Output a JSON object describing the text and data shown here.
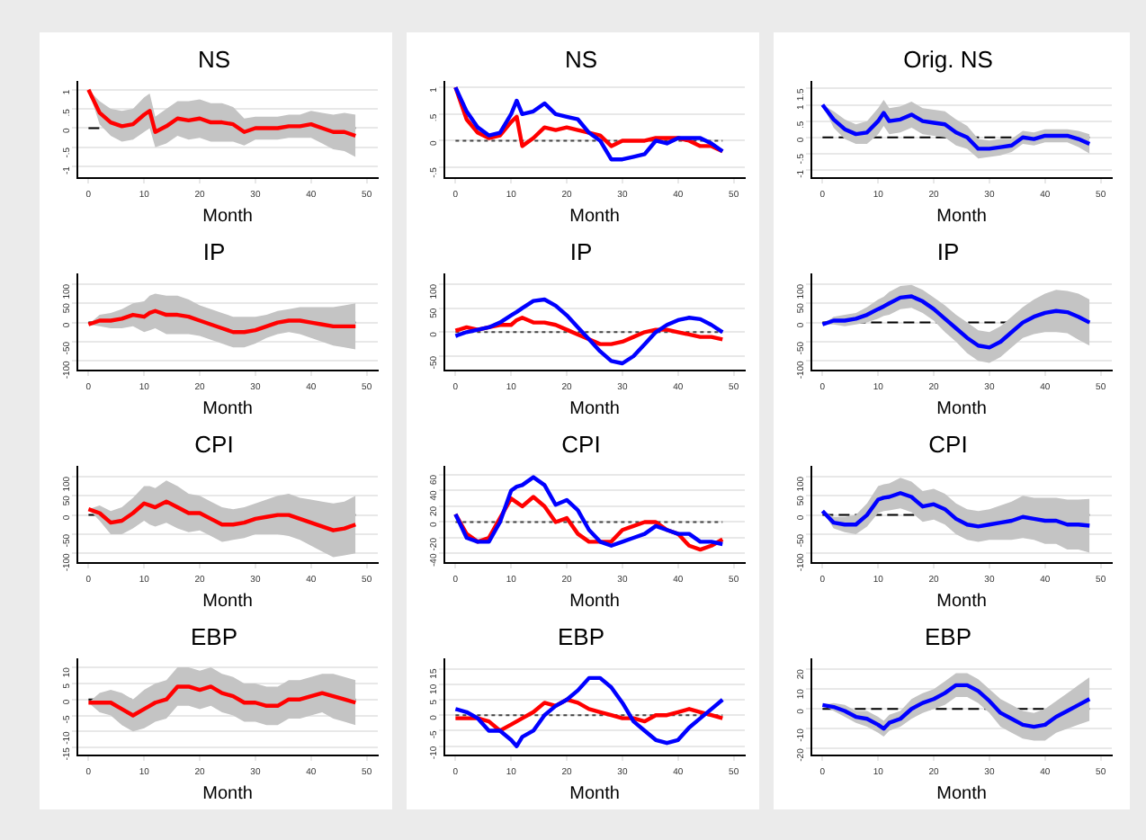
{
  "chart_data": [
    {
      "type": "line",
      "title": "NS",
      "xlabel": "Month",
      "x": [
        0,
        2,
        4,
        6,
        8,
        10,
        11,
        12,
        14,
        16,
        18,
        20,
        22,
        24,
        26,
        28,
        30,
        32,
        34,
        36,
        38,
        40,
        42,
        44,
        46,
        48
      ],
      "xlim": [
        -2,
        52
      ],
      "xticks": [
        0,
        10,
        20,
        30,
        40,
        50
      ],
      "ylim": [
        -1.3,
        1.2
      ],
      "yticks": [
        {
          "value": 1,
          "label": "1"
        },
        {
          "value": 0.5,
          "label": ".5"
        },
        {
          "value": 0,
          "label": "0"
        },
        {
          "value": -0.5,
          "label": "-.5"
        },
        {
          "value": -1,
          "label": "-1"
        }
      ],
      "grid": "y",
      "legend": false,
      "ref_lines": [
        {
          "axis": "y",
          "value": 0,
          "color": "#000000",
          "line_style": "dashed"
        }
      ],
      "series": [
        {
          "color": "#ff0000",
          "values": [
            1.0,
            0.4,
            0.15,
            0.05,
            0.1,
            0.35,
            0.45,
            -0.1,
            0.05,
            0.25,
            0.2,
            0.25,
            0.15,
            0.15,
            0.1,
            -0.1,
            0,
            0,
            0,
            0.05,
            0.05,
            0.1,
            0,
            -0.1,
            -0.1,
            -0.2
          ],
          "lower": [
            1.0,
            0.1,
            -0.2,
            -0.35,
            -0.3,
            -0.1,
            0,
            -0.5,
            -0.4,
            -0.2,
            -0.3,
            -0.25,
            -0.35,
            -0.35,
            -0.35,
            -0.45,
            -0.3,
            -0.3,
            -0.3,
            -0.25,
            -0.25,
            -0.25,
            -0.4,
            -0.55,
            -0.6,
            -0.75
          ],
          "upper": [
            1.0,
            0.7,
            0.5,
            0.45,
            0.5,
            0.8,
            0.9,
            0.3,
            0.5,
            0.7,
            0.7,
            0.75,
            0.65,
            0.65,
            0.55,
            0.25,
            0.3,
            0.3,
            0.3,
            0.35,
            0.35,
            0.45,
            0.4,
            0.35,
            0.4,
            0.35
          ]
        }
      ]
    },
    {
      "type": "line",
      "title": "NS",
      "xlabel": "Month",
      "x": [
        0,
        2,
        4,
        6,
        8,
        10,
        11,
        12,
        14,
        16,
        18,
        20,
        22,
        24,
        26,
        28,
        30,
        32,
        34,
        36,
        38,
        40,
        42,
        44,
        46,
        48
      ],
      "xlim": [
        -2,
        52
      ],
      "xticks": [
        0,
        10,
        20,
        30,
        40,
        50
      ],
      "ylim": [
        -0.7,
        1.1
      ],
      "yticks": [
        {
          "value": 1,
          "label": "1"
        },
        {
          "value": 0.5,
          "label": ".5"
        },
        {
          "value": 0,
          "label": "0"
        },
        {
          "value": -0.5,
          "label": "-.5"
        }
      ],
      "grid": "y",
      "legend": false,
      "ref_lines": [
        {
          "axis": "y",
          "value": 0,
          "color": "#444444",
          "line_style": "dotted"
        }
      ],
      "series": [
        {
          "color": "#ff0000",
          "values": [
            1.0,
            0.4,
            0.15,
            0.05,
            0.1,
            0.35,
            0.45,
            -0.1,
            0.05,
            0.25,
            0.2,
            0.25,
            0.2,
            0.15,
            0.1,
            -0.1,
            0,
            0,
            0,
            0.05,
            0.05,
            0.05,
            0,
            -0.1,
            -0.1,
            -0.2
          ]
        },
        {
          "color": "#0000ff",
          "values": [
            1.0,
            0.55,
            0.25,
            0.1,
            0.15,
            0.5,
            0.75,
            0.5,
            0.55,
            0.7,
            0.5,
            0.45,
            0.4,
            0.15,
            0,
            -0.35,
            -0.35,
            -0.3,
            -0.25,
            0,
            -0.05,
            0.05,
            0.05,
            0.05,
            -0.05,
            -0.2
          ]
        }
      ]
    },
    {
      "type": "line",
      "title": "Orig. NS",
      "xlabel": "Month",
      "x": [
        0,
        2,
        4,
        6,
        8,
        10,
        11,
        12,
        14,
        16,
        18,
        20,
        22,
        24,
        26,
        28,
        30,
        32,
        34,
        36,
        38,
        40,
        42,
        44,
        46,
        48
      ],
      "xlim": [
        -2,
        52
      ],
      "xticks": [
        0,
        10,
        20,
        30,
        40,
        50
      ],
      "ylim": [
        -1.25,
        1.7
      ],
      "yticks": [
        {
          "value": 1.5,
          "label": "1.5"
        },
        {
          "value": 1,
          "label": "1"
        },
        {
          "value": 0.5,
          "label": ".5"
        },
        {
          "value": 0,
          "label": "0"
        },
        {
          "value": -0.5,
          "label": "-.5"
        },
        {
          "value": -1,
          "label": "-1"
        }
      ],
      "grid": "y",
      "legend": false,
      "ref_lines": [
        {
          "axis": "y",
          "value": 0,
          "color": "#000000",
          "line_style": "dashed"
        }
      ],
      "series": [
        {
          "color": "#0000ff",
          "values": [
            1.0,
            0.55,
            0.25,
            0.1,
            0.15,
            0.5,
            0.75,
            0.5,
            0.55,
            0.7,
            0.5,
            0.45,
            0.4,
            0.15,
            0,
            -0.35,
            -0.35,
            -0.3,
            -0.25,
            0,
            -0.05,
            0.05,
            0.05,
            0.05,
            -0.05,
            -0.2
          ],
          "lower": [
            1.0,
            0.3,
            -0.05,
            -0.2,
            -0.2,
            0.1,
            0.35,
            0.1,
            0.15,
            0.3,
            0.1,
            0.05,
            0,
            -0.25,
            -0.35,
            -0.65,
            -0.6,
            -0.55,
            -0.45,
            -0.2,
            -0.25,
            -0.15,
            -0.15,
            -0.15,
            -0.3,
            -0.5
          ],
          "upper": [
            1.0,
            0.8,
            0.55,
            0.4,
            0.5,
            0.9,
            1.15,
            0.9,
            0.95,
            1.1,
            0.9,
            0.85,
            0.8,
            0.55,
            0.35,
            -0.05,
            -0.1,
            -0.05,
            -0.05,
            0.2,
            0.15,
            0.25,
            0.25,
            0.25,
            0.2,
            0.1
          ]
        }
      ]
    },
    {
      "type": "line",
      "title": "IP",
      "xlabel": "Month",
      "x": [
        0,
        2,
        4,
        6,
        8,
        10,
        11,
        12,
        14,
        16,
        18,
        20,
        22,
        24,
        26,
        28,
        30,
        32,
        34,
        36,
        38,
        40,
        42,
        44,
        46,
        48
      ],
      "xlim": [
        -2,
        52
      ],
      "xticks": [
        0,
        10,
        20,
        30,
        40,
        50
      ],
      "ylim": [
        -125,
        125
      ],
      "yticks": [
        100,
        50,
        0,
        -50,
        -100
      ],
      "grid": "y",
      "legend": false,
      "ref_lines": [
        {
          "axis": "y",
          "value": 0,
          "color": "#000000",
          "line_style": "dashed"
        }
      ],
      "series": [
        {
          "color": "#ff0000",
          "values": [
            -5,
            5,
            5,
            10,
            20,
            15,
            25,
            30,
            20,
            20,
            15,
            5,
            -5,
            -15,
            -25,
            -25,
            -20,
            -10,
            0,
            5,
            5,
            0,
            -5,
            -10,
            -10,
            -10
          ],
          "lower": [
            -5,
            -10,
            -15,
            -15,
            -10,
            -25,
            -20,
            -15,
            -30,
            -30,
            -30,
            -35,
            -45,
            -55,
            -65,
            -65,
            -55,
            -40,
            -30,
            -25,
            -30,
            -40,
            -50,
            -60,
            -65,
            -70
          ],
          "upper": [
            -5,
            20,
            25,
            35,
            50,
            55,
            70,
            75,
            70,
            70,
            60,
            45,
            35,
            25,
            15,
            15,
            15,
            20,
            30,
            35,
            40,
            40,
            40,
            40,
            45,
            50
          ]
        }
      ]
    },
    {
      "type": "line",
      "title": "IP",
      "xlabel": "Month",
      "x": [
        0,
        2,
        4,
        6,
        8,
        10,
        11,
        12,
        14,
        16,
        18,
        20,
        22,
        24,
        26,
        28,
        30,
        32,
        34,
        36,
        38,
        40,
        42,
        44,
        46,
        48
      ],
      "xlim": [
        -2,
        52
      ],
      "xticks": [
        0,
        10,
        20,
        30,
        40,
        50
      ],
      "ylim": [
        -80,
        120
      ],
      "yticks": [
        100,
        50,
        0,
        -50
      ],
      "grid": "y",
      "legend": false,
      "ref_lines": [
        {
          "axis": "y",
          "value": 0,
          "color": "#444444",
          "line_style": "dotted"
        }
      ],
      "series": [
        {
          "color": "#ff0000",
          "values": [
            3,
            10,
            5,
            10,
            15,
            15,
            25,
            30,
            20,
            20,
            15,
            5,
            -5,
            -15,
            -25,
            -25,
            -20,
            -10,
            0,
            5,
            5,
            0,
            -5,
            -10,
            -10,
            -15
          ]
        },
        {
          "color": "#0000ff",
          "values": [
            -8,
            0,
            5,
            10,
            20,
            35,
            42,
            50,
            65,
            68,
            55,
            35,
            10,
            -15,
            -40,
            -60,
            -65,
            -50,
            -25,
            0,
            15,
            25,
            30,
            27,
            15,
            0
          ]
        }
      ]
    },
    {
      "type": "line",
      "title": "IP",
      "xlabel": "Month",
      "x": [
        0,
        2,
        4,
        6,
        8,
        10,
        11,
        12,
        14,
        16,
        18,
        20,
        22,
        24,
        26,
        28,
        30,
        32,
        34,
        36,
        38,
        40,
        42,
        44,
        46,
        48
      ],
      "xlim": [
        -2,
        52
      ],
      "xticks": [
        0,
        10,
        20,
        30,
        40,
        50
      ],
      "ylim": [
        -125,
        125
      ],
      "yticks": [
        100,
        50,
        0,
        -50,
        -100
      ],
      "grid": "y",
      "legend": false,
      "ref_lines": [
        {
          "axis": "y",
          "value": 0,
          "color": "#000000",
          "line_style": "dashed"
        }
      ],
      "series": [
        {
          "color": "#0000ff",
          "values": [
            -5,
            5,
            5,
            10,
            20,
            35,
            42,
            50,
            65,
            68,
            55,
            35,
            10,
            -15,
            -40,
            -60,
            -65,
            -50,
            -25,
            0,
            15,
            25,
            30,
            27,
            15,
            0
          ],
          "lower": [
            -5,
            -5,
            -10,
            -5,
            0,
            10,
            17,
            20,
            35,
            38,
            25,
            5,
            -25,
            -50,
            -80,
            -100,
            -105,
            -90,
            -65,
            -40,
            -30,
            -25,
            -25,
            -28,
            -45,
            -60
          ],
          "upper": [
            -5,
            15,
            20,
            25,
            40,
            60,
            67,
            80,
            95,
            98,
            85,
            65,
            45,
            20,
            0,
            -20,
            -25,
            -10,
            15,
            40,
            60,
            75,
            85,
            82,
            75,
            60
          ]
        }
      ]
    },
    {
      "type": "line",
      "title": "CPI",
      "xlabel": "Month",
      "x": [
        0,
        2,
        4,
        6,
        8,
        10,
        11,
        12,
        14,
        16,
        18,
        20,
        22,
        24,
        26,
        28,
        30,
        32,
        34,
        36,
        38,
        40,
        42,
        44,
        46,
        48
      ],
      "xlim": [
        -2,
        52
      ],
      "xticks": [
        0,
        10,
        20,
        30,
        40,
        50
      ],
      "ylim": [
        -125,
        125
      ],
      "yticks": [
        100,
        50,
        0,
        -50,
        -100
      ],
      "grid": "y",
      "legend": false,
      "ref_lines": [
        {
          "axis": "y",
          "value": 0,
          "color": "#000000",
          "line_style": "dashed"
        }
      ],
      "series": [
        {
          "color": "#ff0000",
          "values": [
            15,
            5,
            -20,
            -15,
            5,
            30,
            25,
            20,
            35,
            20,
            5,
            5,
            -10,
            -25,
            -25,
            -20,
            -10,
            -5,
            0,
            0,
            -10,
            -20,
            -30,
            -40,
            -35,
            -25
          ],
          "lower": [
            15,
            -15,
            -50,
            -50,
            -35,
            -15,
            -25,
            -30,
            -20,
            -35,
            -45,
            -40,
            -55,
            -70,
            -65,
            -60,
            -50,
            -50,
            -50,
            -55,
            -65,
            -80,
            -95,
            -110,
            -105,
            -100
          ],
          "upper": [
            15,
            25,
            10,
            20,
            45,
            75,
            75,
            70,
            90,
            75,
            55,
            50,
            35,
            20,
            15,
            20,
            30,
            40,
            50,
            55,
            45,
            40,
            35,
            30,
            35,
            50
          ]
        }
      ]
    },
    {
      "type": "line",
      "title": "CPI",
      "xlabel": "Month",
      "x": [
        0,
        2,
        4,
        6,
        8,
        10,
        11,
        12,
        14,
        16,
        18,
        20,
        22,
        24,
        26,
        28,
        30,
        32,
        34,
        36,
        38,
        40,
        42,
        44,
        46,
        48
      ],
      "xlim": [
        -2,
        52
      ],
      "xticks": [
        0,
        10,
        20,
        30,
        40,
        50
      ],
      "ylim": [
        -52,
        70
      ],
      "yticks": [
        60,
        40,
        20,
        0,
        -20,
        -40
      ],
      "grid": "y",
      "legend": false,
      "ref_lines": [
        {
          "axis": "y",
          "value": 0,
          "color": "#444444",
          "line_style": "dotted"
        }
      ],
      "series": [
        {
          "color": "#ff0000",
          "values": [
            10,
            -15,
            -25,
            -20,
            5,
            30,
            25,
            20,
            32,
            20,
            0,
            5,
            -15,
            -25,
            -25,
            -25,
            -10,
            -5,
            0,
            0,
            -10,
            -15,
            -30,
            -35,
            -30,
            -22
          ]
        },
        {
          "color": "#0000ff",
          "values": [
            10,
            -20,
            -25,
            -25,
            0,
            40,
            45,
            47,
            57,
            47,
            22,
            28,
            15,
            -10,
            -25,
            -30,
            -25,
            -20,
            -15,
            -5,
            -10,
            -15,
            -15,
            -25,
            -25,
            -28
          ]
        }
      ]
    },
    {
      "type": "line",
      "title": "CPI",
      "xlabel": "Month",
      "x": [
        0,
        2,
        4,
        6,
        8,
        10,
        11,
        12,
        14,
        16,
        18,
        20,
        22,
        24,
        26,
        28,
        30,
        32,
        34,
        36,
        38,
        40,
        42,
        44,
        46,
        48
      ],
      "xlim": [
        -2,
        52
      ],
      "xticks": [
        0,
        10,
        20,
        30,
        40,
        50
      ],
      "ylim": [
        -125,
        125
      ],
      "yticks": [
        100,
        50,
        0,
        -50,
        -100
      ],
      "grid": "y",
      "legend": false,
      "ref_lines": [
        {
          "axis": "y",
          "value": 0,
          "color": "#000000",
          "line_style": "dashed"
        }
      ],
      "series": [
        {
          "color": "#0000ff",
          "values": [
            10,
            -20,
            -25,
            -25,
            0,
            40,
            45,
            47,
            57,
            47,
            22,
            28,
            15,
            -10,
            -25,
            -30,
            -25,
            -20,
            -15,
            -5,
            -10,
            -15,
            -15,
            -25,
            -25,
            -28
          ],
          "lower": [
            10,
            -35,
            -45,
            -50,
            -30,
            5,
            10,
            12,
            17,
            7,
            -18,
            -12,
            -25,
            -50,
            -65,
            -70,
            -65,
            -65,
            -65,
            -60,
            -65,
            -75,
            -75,
            -90,
            -90,
            -98
          ],
          "upper": [
            10,
            -5,
            -5,
            0,
            30,
            75,
            80,
            82,
            97,
            87,
            62,
            68,
            55,
            30,
            15,
            10,
            15,
            25,
            35,
            50,
            45,
            45,
            45,
            40,
            40,
            42
          ]
        }
      ]
    },
    {
      "type": "line",
      "title": "EBP",
      "xlabel": "Month",
      "x": [
        0,
        2,
        4,
        6,
        8,
        10,
        11,
        12,
        14,
        16,
        18,
        20,
        22,
        24,
        26,
        28,
        30,
        32,
        34,
        36,
        38,
        40,
        42,
        44,
        46,
        48
      ],
      "xlim": [
        -2,
        52
      ],
      "xticks": [
        0,
        10,
        20,
        30,
        40,
        50
      ],
      "ylim": [
        -17.5,
        12.5
      ],
      "yticks": [
        10,
        5,
        0,
        -5,
        -10,
        -15
      ],
      "grid": "y",
      "legend": false,
      "ref_lines": [
        {
          "axis": "y",
          "value": 0,
          "color": "#000000",
          "line_style": "dashed"
        }
      ],
      "series": [
        {
          "color": "#ff0000",
          "values": [
            -1,
            -1,
            -1,
            -3,
            -5,
            -3,
            -2,
            -1,
            0,
            4,
            4,
            3,
            4,
            2,
            1,
            -1,
            -1,
            -2,
            -2,
            0,
            0,
            1,
            2,
            1,
            0,
            -1
          ],
          "lower": [
            -1,
            -4,
            -5,
            -8,
            -10,
            -9,
            -8,
            -7,
            -6,
            -2,
            -2,
            -3,
            -2,
            -4,
            -5,
            -7,
            -7,
            -8,
            -8,
            -6,
            -6,
            -5,
            -4,
            -6,
            -7,
            -8
          ],
          "upper": [
            -1,
            2,
            3,
            2,
            0,
            3,
            4,
            5,
            6,
            10,
            10,
            9,
            10,
            8,
            7,
            5,
            5,
            4,
            4,
            6,
            6,
            7,
            8,
            8,
            7,
            6
          ]
        }
      ]
    },
    {
      "type": "line",
      "title": "EBP",
      "xlabel": "Month",
      "x": [
        0,
        2,
        4,
        6,
        8,
        10,
        11,
        12,
        14,
        16,
        18,
        20,
        22,
        24,
        26,
        28,
        30,
        32,
        34,
        36,
        38,
        40,
        42,
        44,
        46,
        48
      ],
      "xlim": [
        -2,
        52
      ],
      "xticks": [
        0,
        10,
        20,
        30,
        40,
        50
      ],
      "ylim": [
        -13,
        18
      ],
      "yticks": [
        15,
        10,
        5,
        0,
        -5,
        -10
      ],
      "grid": "y",
      "legend": false,
      "ref_lines": [
        {
          "axis": "y",
          "value": 0,
          "color": "#444444",
          "line_style": "dotted"
        }
      ],
      "series": [
        {
          "color": "#ff0000",
          "values": [
            -1,
            -1,
            -1,
            -2,
            -5,
            -3,
            -2,
            -1,
            1,
            4,
            3,
            5,
            4,
            2,
            1,
            0,
            -1,
            -1,
            -2,
            0,
            0,
            1,
            2,
            1,
            0,
            -1
          ]
        },
        {
          "color": "#0000ff",
          "values": [
            2,
            1,
            -1,
            -5,
            -5,
            -8,
            -10,
            -7,
            -5,
            0,
            3,
            5,
            8,
            12,
            12,
            9,
            4,
            -2,
            -5,
            -8,
            -9,
            -8,
            -4,
            -1,
            2,
            5
          ]
        }
      ]
    },
    {
      "type": "line",
      "title": "EBP",
      "xlabel": "Month",
      "x": [
        0,
        2,
        4,
        6,
        8,
        10,
        11,
        12,
        14,
        16,
        18,
        20,
        22,
        24,
        26,
        28,
        30,
        32,
        34,
        36,
        38,
        40,
        42,
        44,
        46,
        48
      ],
      "xlim": [
        -2,
        52
      ],
      "xticks": [
        0,
        10,
        20,
        30,
        40,
        50
      ],
      "ylim": [
        -23.5,
        25
      ],
      "yticks": [
        20,
        10,
        0,
        -10,
        -20
      ],
      "grid": "y",
      "legend": false,
      "ref_lines": [
        {
          "axis": "y",
          "value": 0,
          "color": "#000000",
          "line_style": "dashed"
        }
      ],
      "series": [
        {
          "color": "#0000ff",
          "values": [
            2,
            1,
            -1,
            -4,
            -5,
            -8,
            -10,
            -7,
            -5,
            0,
            3,
            5,
            8,
            12,
            12,
            9,
            4,
            -2,
            -5,
            -8,
            -9,
            -8,
            -4,
            -1,
            2,
            5
          ],
          "lower": [
            2,
            -1,
            -4,
            -7,
            -9,
            -12,
            -14,
            -11,
            -9,
            -5,
            -2,
            0,
            2,
            6,
            6,
            3,
            -2,
            -9,
            -12,
            -15,
            -16,
            -16,
            -12,
            -10,
            -8,
            -6
          ],
          "upper": [
            2,
            3,
            2,
            -1,
            -1,
            -4,
            -6,
            -3,
            -1,
            5,
            8,
            10,
            14,
            18,
            18,
            15,
            10,
            5,
            2,
            -1,
            -2,
            0,
            4,
            8,
            12,
            16
          ]
        }
      ]
    }
  ]
}
